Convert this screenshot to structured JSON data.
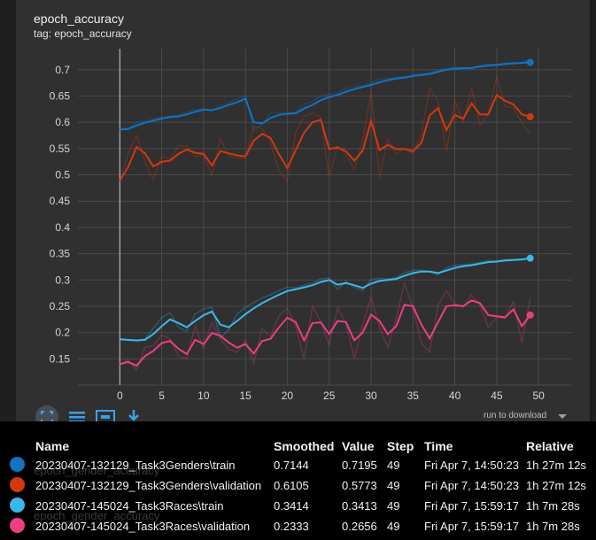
{
  "card": {
    "title": "epoch_accuracy",
    "subtitle": "tag: epoch_accuracy"
  },
  "toolbar": {
    "items": [
      {
        "icon": "fullscreen-icon"
      },
      {
        "icon": "log-scale-icon"
      },
      {
        "icon": "fit-domain-icon"
      },
      {
        "icon": "download-icon"
      }
    ],
    "run_to_download": "run to download"
  },
  "ghost_text": [
    "epoch_gender_accuracy",
    "epoch_gender_accuracy"
  ],
  "table": {
    "headers": {
      "name": "Name",
      "smoothed": "Smoothed",
      "value": "Value",
      "step": "Step",
      "time": "Time",
      "relative": "Relative"
    },
    "rows": [
      {
        "color": "#1173c2",
        "name": "20230407-132129_Task3Genders\\train",
        "smoothed": "0.7144",
        "value": "0.7195",
        "step": "49",
        "time": "Fri Apr 7, 14:50:23",
        "relative": "1h 27m 12s"
      },
      {
        "color": "#d4380d",
        "name": "20230407-132129_Task3Genders\\validation",
        "smoothed": "0.6105",
        "value": "0.5773",
        "step": "49",
        "time": "Fri Apr 7, 14:50:23",
        "relative": "1h 27m 12s"
      },
      {
        "color": "#3bb7ec",
        "name": "20230407-145024_Task3Races\\train",
        "smoothed": "0.3414",
        "value": "0.3413",
        "step": "49",
        "time": "Fri Apr 7, 15:59:17",
        "relative": "1h 7m 28s"
      },
      {
        "color": "#ec3e83",
        "name": "20230407-145024_Task3Races\\validation",
        "smoothed": "0.2333",
        "value": "0.2656",
        "step": "49",
        "time": "Fri Apr 7, 15:59:17",
        "relative": "1h 7m 28s"
      }
    ]
  },
  "chart_data": {
    "type": "line",
    "title": "epoch_accuracy",
    "xlim": [
      -5,
      54
    ],
    "ylim": [
      0.1,
      0.74
    ],
    "x_ticks": [
      0,
      5,
      10,
      15,
      20,
      25,
      30,
      35,
      40,
      45,
      50
    ],
    "y_ticks": [
      0.15,
      0.2,
      0.25,
      0.3,
      0.35,
      0.4,
      0.45,
      0.5,
      0.55,
      0.6,
      0.65,
      0.7
    ],
    "grid": true,
    "x": [
      0,
      1,
      2,
      3,
      4,
      5,
      6,
      7,
      8,
      9,
      10,
      11,
      12,
      13,
      14,
      15,
      16,
      17,
      18,
      19,
      20,
      21,
      22,
      23,
      24,
      25,
      26,
      27,
      28,
      29,
      30,
      31,
      32,
      33,
      34,
      35,
      36,
      37,
      38,
      39,
      40,
      41,
      42,
      43,
      44,
      45,
      46,
      47,
      48,
      49
    ],
    "series": [
      {
        "name": "20230407-132129_Task3Genders\\train",
        "color": "#1173c2",
        "smoothed": [
          0.586,
          0.587,
          0.594,
          0.599,
          0.603,
          0.607,
          0.61,
          0.611,
          0.615,
          0.62,
          0.624,
          0.623,
          0.627,
          0.633,
          0.638,
          0.645,
          0.6,
          0.598,
          0.608,
          0.614,
          0.616,
          0.617,
          0.626,
          0.633,
          0.642,
          0.648,
          0.652,
          0.658,
          0.663,
          0.667,
          0.671,
          0.676,
          0.68,
          0.683,
          0.685,
          0.688,
          0.69,
          0.692,
          0.696,
          0.7,
          0.702,
          0.703,
          0.703,
          0.706,
          0.708,
          0.709,
          0.711,
          0.712,
          0.713,
          0.714
        ],
        "raw": [
          0.586,
          0.59,
          0.6,
          0.602,
          0.606,
          0.61,
          0.612,
          0.614,
          0.619,
          0.624,
          0.626,
          0.622,
          0.632,
          0.638,
          0.644,
          0.651,
          0.585,
          0.596,
          0.618,
          0.618,
          0.618,
          0.619,
          0.634,
          0.64,
          0.65,
          0.653,
          0.656,
          0.664,
          0.667,
          0.67,
          0.675,
          0.682,
          0.683,
          0.686,
          0.687,
          0.691,
          0.692,
          0.694,
          0.7,
          0.703,
          0.704,
          0.704,
          0.704,
          0.708,
          0.71,
          0.71,
          0.713,
          0.713,
          0.714,
          0.7195
        ]
      },
      {
        "name": "20230407-132129_Task3Genders\\validation",
        "color": "#d4380d",
        "smoothed": [
          0.489,
          0.515,
          0.553,
          0.541,
          0.516,
          0.525,
          0.527,
          0.54,
          0.548,
          0.542,
          0.54,
          0.518,
          0.545,
          0.541,
          0.537,
          0.535,
          0.565,
          0.578,
          0.57,
          0.539,
          0.513,
          0.547,
          0.58,
          0.6,
          0.605,
          0.549,
          0.552,
          0.545,
          0.527,
          0.546,
          0.603,
          0.547,
          0.557,
          0.549,
          0.549,
          0.545,
          0.561,
          0.613,
          0.627,
          0.585,
          0.614,
          0.607,
          0.636,
          0.615,
          0.615,
          0.652,
          0.641,
          0.634,
          0.615,
          0.6105
        ],
        "raw": [
          0.489,
          0.54,
          0.575,
          0.525,
          0.49,
          0.535,
          0.53,
          0.555,
          0.555,
          0.535,
          0.538,
          0.498,
          0.57,
          0.535,
          0.532,
          0.532,
          0.592,
          0.588,
          0.562,
          0.508,
          0.488,
          0.58,
          0.612,
          0.618,
          0.61,
          0.495,
          0.555,
          0.538,
          0.51,
          0.565,
          0.66,
          0.495,
          0.568,
          0.54,
          0.55,
          0.54,
          0.578,
          0.665,
          0.64,
          0.545,
          0.642,
          0.6,
          0.665,
          0.595,
          0.615,
          0.688,
          0.63,
          0.628,
          0.598,
          0.5773
        ]
      },
      {
        "name": "20230407-145024_Task3Races\\train",
        "color": "#3bb7ec",
        "smoothed": [
          0.187,
          0.186,
          0.185,
          0.186,
          0.197,
          0.212,
          0.225,
          0.218,
          0.21,
          0.222,
          0.233,
          0.24,
          0.215,
          0.21,
          0.222,
          0.235,
          0.246,
          0.256,
          0.264,
          0.272,
          0.279,
          0.282,
          0.286,
          0.29,
          0.296,
          0.3,
          0.291,
          0.294,
          0.29,
          0.285,
          0.293,
          0.298,
          0.3,
          0.302,
          0.308,
          0.313,
          0.316,
          0.316,
          0.313,
          0.318,
          0.323,
          0.326,
          0.328,
          0.331,
          0.334,
          0.335,
          0.337,
          0.338,
          0.339,
          0.3414
        ],
        "raw": [
          0.187,
          0.185,
          0.184,
          0.188,
          0.208,
          0.228,
          0.238,
          0.21,
          0.202,
          0.235,
          0.245,
          0.248,
          0.19,
          0.205,
          0.235,
          0.248,
          0.257,
          0.266,
          0.272,
          0.28,
          0.286,
          0.285,
          0.29,
          0.294,
          0.302,
          0.304,
          0.282,
          0.297,
          0.286,
          0.28,
          0.301,
          0.303,
          0.302,
          0.304,
          0.314,
          0.318,
          0.319,
          0.316,
          0.31,
          0.323,
          0.328,
          0.329,
          0.33,
          0.334,
          0.337,
          0.336,
          0.339,
          0.339,
          0.34,
          0.3413
        ]
      },
      {
        "name": "20230407-145024_Task3Races\\validation",
        "color": "#ec3e83",
        "smoothed": [
          0.14,
          0.144,
          0.137,
          0.155,
          0.165,
          0.18,
          0.184,
          0.169,
          0.159,
          0.186,
          0.178,
          0.199,
          0.194,
          0.181,
          0.171,
          0.178,
          0.16,
          0.184,
          0.188,
          0.21,
          0.228,
          0.22,
          0.185,
          0.218,
          0.219,
          0.197,
          0.222,
          0.22,
          0.185,
          0.2,
          0.234,
          0.222,
          0.197,
          0.212,
          0.253,
          0.25,
          0.215,
          0.189,
          0.22,
          0.25,
          0.252,
          0.25,
          0.261,
          0.256,
          0.233,
          0.231,
          0.229,
          0.244,
          0.212,
          0.2333
        ],
        "raw": [
          0.14,
          0.148,
          0.128,
          0.172,
          0.175,
          0.195,
          0.188,
          0.155,
          0.15,
          0.212,
          0.17,
          0.22,
          0.188,
          0.168,
          0.162,
          0.185,
          0.142,
          0.208,
          0.192,
          0.232,
          0.246,
          0.212,
          0.15,
          0.25,
          0.22,
          0.176,
          0.247,
          0.218,
          0.15,
          0.215,
          0.268,
          0.21,
          0.172,
          0.227,
          0.294,
          0.247,
          0.18,
          0.163,
          0.251,
          0.28,
          0.254,
          0.248,
          0.272,
          0.251,
          0.21,
          0.229,
          0.227,
          0.259,
          0.18,
          0.2656
        ]
      }
    ]
  }
}
